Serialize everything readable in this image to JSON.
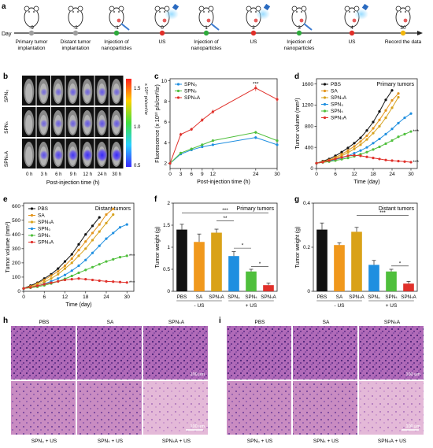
{
  "panel_labels": [
    "a",
    "b",
    "c",
    "d",
    "e",
    "f",
    "g",
    "h",
    "i"
  ],
  "timeline": {
    "day_label": "Day",
    "days": [
      "-9",
      "-2",
      "-1",
      "0",
      "1",
      "2",
      "3",
      "4",
      "30"
    ],
    "events": [
      {
        "text": [
          "Primary tumor",
          "implantation"
        ]
      },
      {
        "text": [
          "Distant tumor",
          "implantation"
        ]
      },
      {
        "text": [
          "Injection of",
          "nanoparticles"
        ]
      },
      {
        "text": [
          "US"
        ]
      },
      {
        "text": [
          "Injection of",
          "nanoparticles"
        ]
      },
      {
        "text": [
          "US"
        ]
      },
      {
        "text": [
          "Injection of",
          "nanoparticles"
        ]
      },
      {
        "text": [
          "US"
        ]
      },
      {
        "text": [
          "Record the data"
        ]
      }
    ],
    "dot_colors": [
      "#9e9e9e",
      "#9e9e9e",
      "#2eaa3c",
      "#e0302a",
      "#2eaa3c",
      "#e0302a",
      "#2eaa3c",
      "#e0302a",
      "#f2b60c"
    ]
  },
  "imaging": {
    "rows": [
      "SPN₀",
      "SPNₛ",
      "SPNₛA"
    ],
    "cols": [
      "0 h",
      "3 h",
      "6 h",
      "9 h",
      "12 h",
      "24 h",
      "30 h"
    ],
    "xlabel": "Post-injection time (h)",
    "colorbar_ticks": [
      "1.5",
      "1.0",
      "0.5"
    ],
    "colorbar_label": "x 10¹⁰ p/s/cm²/sr",
    "intensity": [
      [
        0.05,
        0.3,
        0.35,
        0.4,
        0.35,
        0.45,
        0.35
      ],
      [
        0.05,
        0.35,
        0.4,
        0.4,
        0.45,
        0.5,
        0.45
      ],
      [
        0.05,
        0.5,
        0.6,
        0.7,
        0.75,
        0.9,
        0.8
      ]
    ]
  },
  "chart_data": [
    {
      "panel": "c",
      "type": "line",
      "xlabel": "Post-injection time (h)",
      "ylabel": "Fluorescence (x 10¹⁰ p/s/cm²/sr)",
      "xlim": [
        0,
        30
      ],
      "ylim": [
        1.5,
        10.2
      ],
      "xticks": [
        0,
        3,
        6,
        9,
        12,
        24,
        30
      ],
      "yticks": [
        2,
        4,
        6,
        8,
        10
      ],
      "x": [
        0,
        3,
        6,
        9,
        12,
        24,
        30
      ],
      "series": [
        {
          "name": "SPN₀",
          "color": "#1f8fe0",
          "values": [
            2.0,
            2.9,
            3.3,
            3.6,
            3.8,
            4.5,
            3.8
          ],
          "err": [
            0.1,
            0.1,
            0.1,
            0.1,
            0.1,
            0.15,
            0.1
          ]
        },
        {
          "name": "SPNₛ",
          "color": "#4fbf3c",
          "values": [
            2.0,
            3.0,
            3.4,
            3.8,
            4.2,
            5.0,
            4.2
          ],
          "err": [
            0.1,
            0.1,
            0.1,
            0.1,
            0.1,
            0.15,
            0.1
          ]
        },
        {
          "name": "SPNₛA",
          "color": "#e0302a",
          "values": [
            2.0,
            4.8,
            5.3,
            6.2,
            7.0,
            9.3,
            8.2
          ],
          "err": [
            0.1,
            0.15,
            0.15,
            0.2,
            0.2,
            0.3,
            0.25
          ]
        }
      ],
      "annotations": [
        {
          "x": 24,
          "y": 9.7,
          "text": "***"
        }
      ],
      "legend": "top-left"
    },
    {
      "panel": "d",
      "type": "line",
      "title": "Primary tumors",
      "xlabel": "Time (day)",
      "ylabel": "Tumor volume (mm³)",
      "xlim": [
        0,
        32
      ],
      "ylim": [
        0,
        1700
      ],
      "xticks": [
        0,
        6,
        12,
        18,
        24,
        30
      ],
      "yticks": [
        0,
        400,
        800,
        1200,
        1600
      ],
      "x": [
        0,
        2,
        4,
        6,
        8,
        10,
        12,
        14,
        16,
        18,
        20,
        22,
        24,
        26,
        28,
        30
      ],
      "series": [
        {
          "name": "PBS",
          "color": "#111111",
          "values": [
            100,
            140,
            180,
            240,
            310,
            390,
            480,
            580,
            720,
            880,
            1080,
            1300,
            1480,
            null,
            null,
            null
          ]
        },
        {
          "name": "SA",
          "color": "#e3941c",
          "values": [
            100,
            130,
            160,
            210,
            270,
            340,
            420,
            510,
            620,
            760,
            920,
            1100,
            1290,
            1420,
            null,
            null
          ]
        },
        {
          "name": "SPNₛA",
          "color": "#d7a21e",
          "values": [
            100,
            125,
            150,
            190,
            240,
            300,
            370,
            450,
            550,
            670,
            800,
            960,
            1150,
            1350,
            null,
            null
          ]
        },
        {
          "name": "SPN₀",
          "color": "#1f8fe0",
          "values": [
            100,
            120,
            140,
            170,
            200,
            240,
            290,
            340,
            400,
            480,
            560,
            650,
            750,
            860,
            960,
            1040
          ]
        },
        {
          "name": "SPNₛ",
          "color": "#4fbf3c",
          "values": [
            100,
            115,
            130,
            150,
            175,
            200,
            230,
            270,
            310,
            360,
            410,
            470,
            530,
            600,
            650,
            700
          ]
        },
        {
          "name": "SPNₛA",
          "color": "#e0302a",
          "values": [
            100,
            120,
            150,
            180,
            210,
            240,
            250,
            240,
            220,
            200,
            180,
            160,
            150,
            140,
            130,
            120
          ]
        }
      ],
      "annotations": [
        {
          "x": 30.6,
          "y": 700,
          "text": "***"
        },
        {
          "x": 30.6,
          "y": 120,
          "text": "***"
        }
      ],
      "legend": "top-left"
    },
    {
      "panel": "e",
      "type": "line",
      "title": "Distant tumors",
      "xlabel": "Time (day)",
      "ylabel": "Tumor volume (mm³)",
      "xlim": [
        0,
        32
      ],
      "ylim": [
        0,
        620
      ],
      "xticks": [
        0,
        6,
        12,
        18,
        24,
        30
      ],
      "yticks": [
        0,
        100,
        200,
        300,
        400,
        500,
        600
      ],
      "x": [
        0,
        2,
        4,
        6,
        8,
        10,
        12,
        14,
        16,
        18,
        20,
        22,
        24,
        26,
        28,
        30
      ],
      "series": [
        {
          "name": "PBS",
          "color": "#111111",
          "values": [
            20,
            40,
            60,
            90,
            120,
            160,
            210,
            260,
            330,
            400,
            460,
            520,
            null,
            null,
            null,
            null
          ]
        },
        {
          "name": "SA",
          "color": "#e3941c",
          "values": [
            20,
            35,
            55,
            80,
            110,
            140,
            180,
            230,
            290,
            350,
            410,
            470,
            540,
            580,
            null,
            null
          ]
        },
        {
          "name": "SPNₛA",
          "color": "#d7a21e",
          "values": [
            20,
            30,
            45,
            65,
            90,
            120,
            160,
            200,
            250,
            300,
            360,
            420,
            480,
            540,
            null,
            null
          ]
        },
        {
          "name": "SPN₀",
          "color": "#1f8fe0",
          "values": [
            20,
            28,
            38,
            52,
            70,
            90,
            115,
            145,
            180,
            220,
            270,
            320,
            370,
            410,
            450,
            470
          ]
        },
        {
          "name": "SPNₛ",
          "color": "#4fbf3c",
          "values": [
            20,
            25,
            32,
            42,
            55,
            70,
            88,
            108,
            130,
            150,
            170,
            190,
            210,
            225,
            240,
            250
          ]
        },
        {
          "name": "SPNₛA",
          "color": "#e0302a",
          "values": [
            20,
            28,
            38,
            50,
            60,
            70,
            80,
            85,
            90,
            85,
            80,
            75,
            70,
            68,
            65,
            62
          ]
        }
      ],
      "annotations": [
        {
          "x": 30.6,
          "y": 250,
          "text": "***"
        },
        {
          "x": 30.6,
          "y": 62,
          "text": "***"
        }
      ],
      "legend": "top-left"
    },
    {
      "panel": "f",
      "type": "bar",
      "title": "Primary tumors",
      "ylabel": "Tumor weight (g)",
      "ylim": [
        0,
        2.0
      ],
      "yticks": [
        0.0,
        0.5,
        1.0,
        1.5,
        2.0
      ],
      "categories": [
        "PBS",
        "SA",
        "SPNₛA",
        "SPN₀",
        "SPNₛ",
        "SPNₛA"
      ],
      "values": [
        1.4,
        1.12,
        1.33,
        0.8,
        0.45,
        0.14
      ],
      "err": [
        0.12,
        0.18,
        0.08,
        0.1,
        0.05,
        0.05
      ],
      "colors": [
        "#111111",
        "#f0981c",
        "#d9a218",
        "#1f8fe0",
        "#4fbf3c",
        "#e0302a"
      ],
      "group_labels": [
        "- US",
        "+ US"
      ],
      "significance": [
        "***",
        "**",
        "*",
        "*"
      ]
    },
    {
      "panel": "g",
      "type": "bar",
      "title": "Distant tumors",
      "ylabel": "Tumor weight (g)",
      "ylim": [
        0,
        0.4
      ],
      "yticks": [
        0.0,
        0.2,
        0.4
      ],
      "categories": [
        "PBS",
        "SA",
        "SPNₛA",
        "SPN₀",
        "SPNₛ",
        "SPNₛA"
      ],
      "values": [
        0.28,
        0.21,
        0.27,
        0.12,
        0.09,
        0.035
      ],
      "err": [
        0.03,
        0.01,
        0.02,
        0.02,
        0.01,
        0.01
      ],
      "colors": [
        "#111111",
        "#f0981c",
        "#d9a218",
        "#1f8fe0",
        "#4fbf3c",
        "#e0302a"
      ],
      "group_labels": [
        "- US",
        "+ US"
      ],
      "significance": [
        "***",
        "*"
      ]
    }
  ],
  "histology": {
    "h": {
      "top": [
        "PBS",
        "SA",
        "SPNₛA"
      ],
      "bottom": [
        "SPN₀ + US",
        "SPNₛ + US",
        "SPNₛA + US"
      ],
      "scale_bar": "100 μm"
    },
    "i": {
      "top": [
        "PBS",
        "SA",
        "SPNₛA"
      ],
      "bottom": [
        "SPN₀ + US",
        "SPNₛ + US",
        "SPNₛA + US"
      ],
      "scale_bar": "100 μm"
    }
  },
  "colors": {
    "he_purple": "#7a4a9a",
    "he_pink": "#d49bc4",
    "he_light": "#e8c3dd"
  }
}
